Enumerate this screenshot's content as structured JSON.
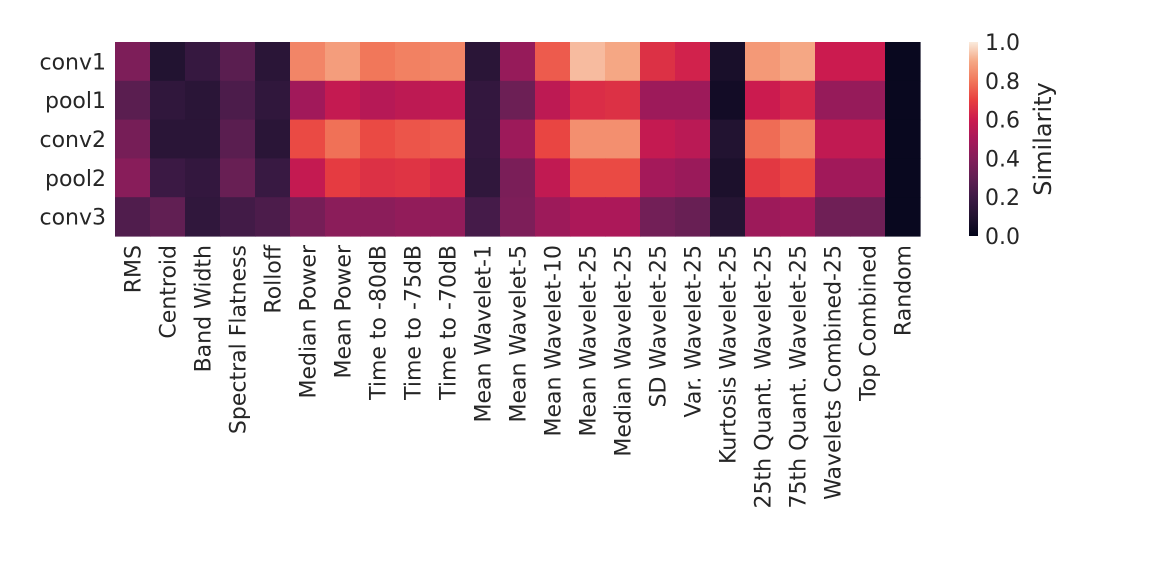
{
  "chart_data": {
    "type": "heatmap",
    "title": "",
    "xlabel": "",
    "ylabel": "",
    "rows": [
      "conv1",
      "pool1",
      "conv2",
      "pool2",
      "conv3"
    ],
    "columns": [
      "RMS",
      "Centroid",
      "Band Width",
      "Spectral Flatness",
      "Rolloff",
      "Median Power",
      "Mean Power",
      "Time to -80dB",
      "Time to -75dB",
      "Time to -70dB",
      "Mean Wavelet-1",
      "Mean Wavelet-5",
      "Mean Wavelet-10",
      "Mean Wavelet-25",
      "Median Wavelet-25",
      "SD Wavelet-25",
      "Var. Wavelet-25",
      "Kurtosis Wavelet-25",
      "25th Quant. Wavelet-25",
      "75th Quant. Wavelet-25",
      "Wavelets Combined-25",
      "Top Combined",
      "Random"
    ],
    "values": [
      [
        0.38,
        0.1,
        0.17,
        0.28,
        0.13,
        0.83,
        0.88,
        0.8,
        0.82,
        0.83,
        0.13,
        0.45,
        0.75,
        0.93,
        0.9,
        0.66,
        0.62,
        0.07,
        0.87,
        0.9,
        0.6,
        0.6,
        0.02
      ],
      [
        0.28,
        0.15,
        0.13,
        0.24,
        0.15,
        0.48,
        0.58,
        0.54,
        0.56,
        0.57,
        0.16,
        0.33,
        0.56,
        0.65,
        0.66,
        0.47,
        0.47,
        0.05,
        0.6,
        0.63,
        0.45,
        0.45,
        0.02
      ],
      [
        0.36,
        0.13,
        0.13,
        0.28,
        0.13,
        0.72,
        0.79,
        0.72,
        0.74,
        0.75,
        0.16,
        0.47,
        0.71,
        0.85,
        0.85,
        0.58,
        0.55,
        0.1,
        0.78,
        0.82,
        0.57,
        0.57,
        0.02
      ],
      [
        0.41,
        0.19,
        0.16,
        0.32,
        0.18,
        0.58,
        0.69,
        0.66,
        0.67,
        0.64,
        0.15,
        0.37,
        0.57,
        0.72,
        0.72,
        0.49,
        0.46,
        0.08,
        0.68,
        0.71,
        0.48,
        0.48,
        0.02
      ],
      [
        0.25,
        0.3,
        0.15,
        0.21,
        0.24,
        0.36,
        0.42,
        0.42,
        0.44,
        0.44,
        0.22,
        0.38,
        0.47,
        0.51,
        0.51,
        0.35,
        0.32,
        0.11,
        0.47,
        0.49,
        0.34,
        0.34,
        0.02
      ]
    ],
    "vmin": 0.0,
    "vmax": 1.0,
    "colormap": "rocket",
    "grid": false,
    "colorbar": {
      "label": "Similarity",
      "position": "right",
      "ticks": [
        "0.0",
        "0.2",
        "0.4",
        "0.6",
        "0.8",
        "1.0"
      ]
    }
  }
}
